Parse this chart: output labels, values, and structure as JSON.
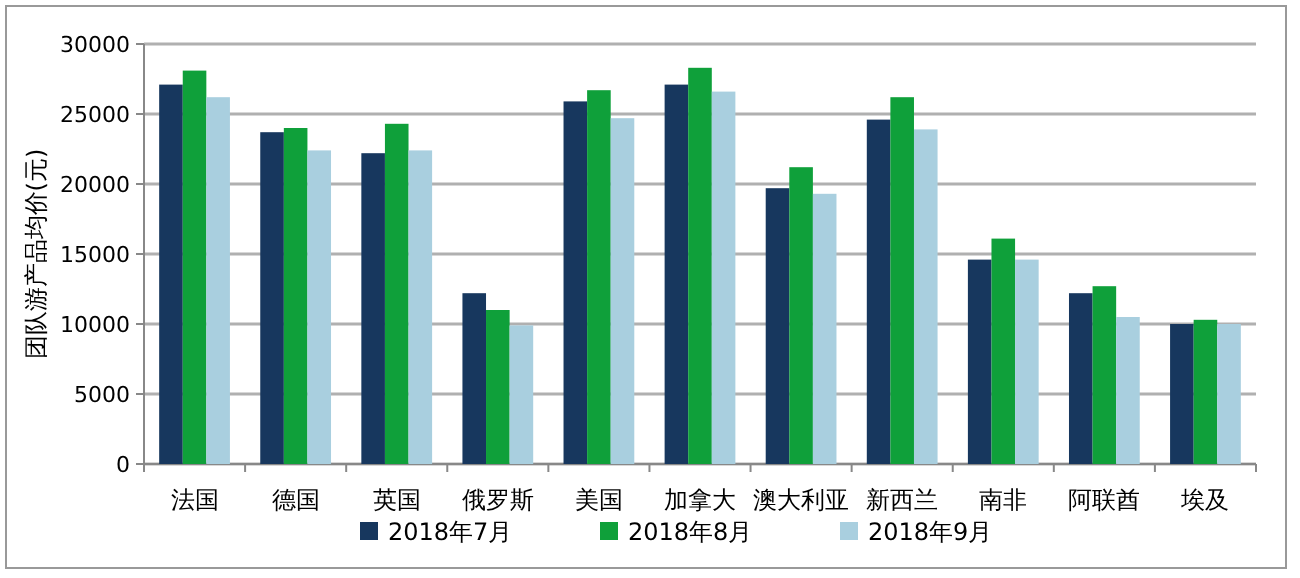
{
  "chart_data": {
    "type": "bar",
    "ylabel": "团队游产品均价(元)",
    "categories": [
      "法国",
      "德国",
      "英国",
      "俄罗斯",
      "美国",
      "加拿大",
      "澳大利亚",
      "新西兰",
      "南非",
      "阿联酋",
      "埃及"
    ],
    "series": [
      {
        "name": "2018年7月",
        "color": "#17375e",
        "values": [
          27100,
          23700,
          22200,
          12200,
          25900,
          27100,
          19700,
          24600,
          14600,
          12200,
          10000
        ]
      },
      {
        "name": "2018年8月",
        "color": "#0fa03a",
        "values": [
          28100,
          24000,
          24300,
          11000,
          26700,
          28300,
          21200,
          26200,
          16100,
          12700,
          10300
        ]
      },
      {
        "name": "2018年9月",
        "color": "#a9cfdf",
        "values": [
          26200,
          22400,
          22400,
          9900,
          24700,
          26600,
          19300,
          23900,
          14600,
          10500,
          10000
        ]
      }
    ],
    "ylim": [
      0,
      30000
    ],
    "yticks": [
      0,
      5000,
      10000,
      15000,
      20000,
      25000,
      30000
    ],
    "grid": "y",
    "legend": "bottom"
  }
}
